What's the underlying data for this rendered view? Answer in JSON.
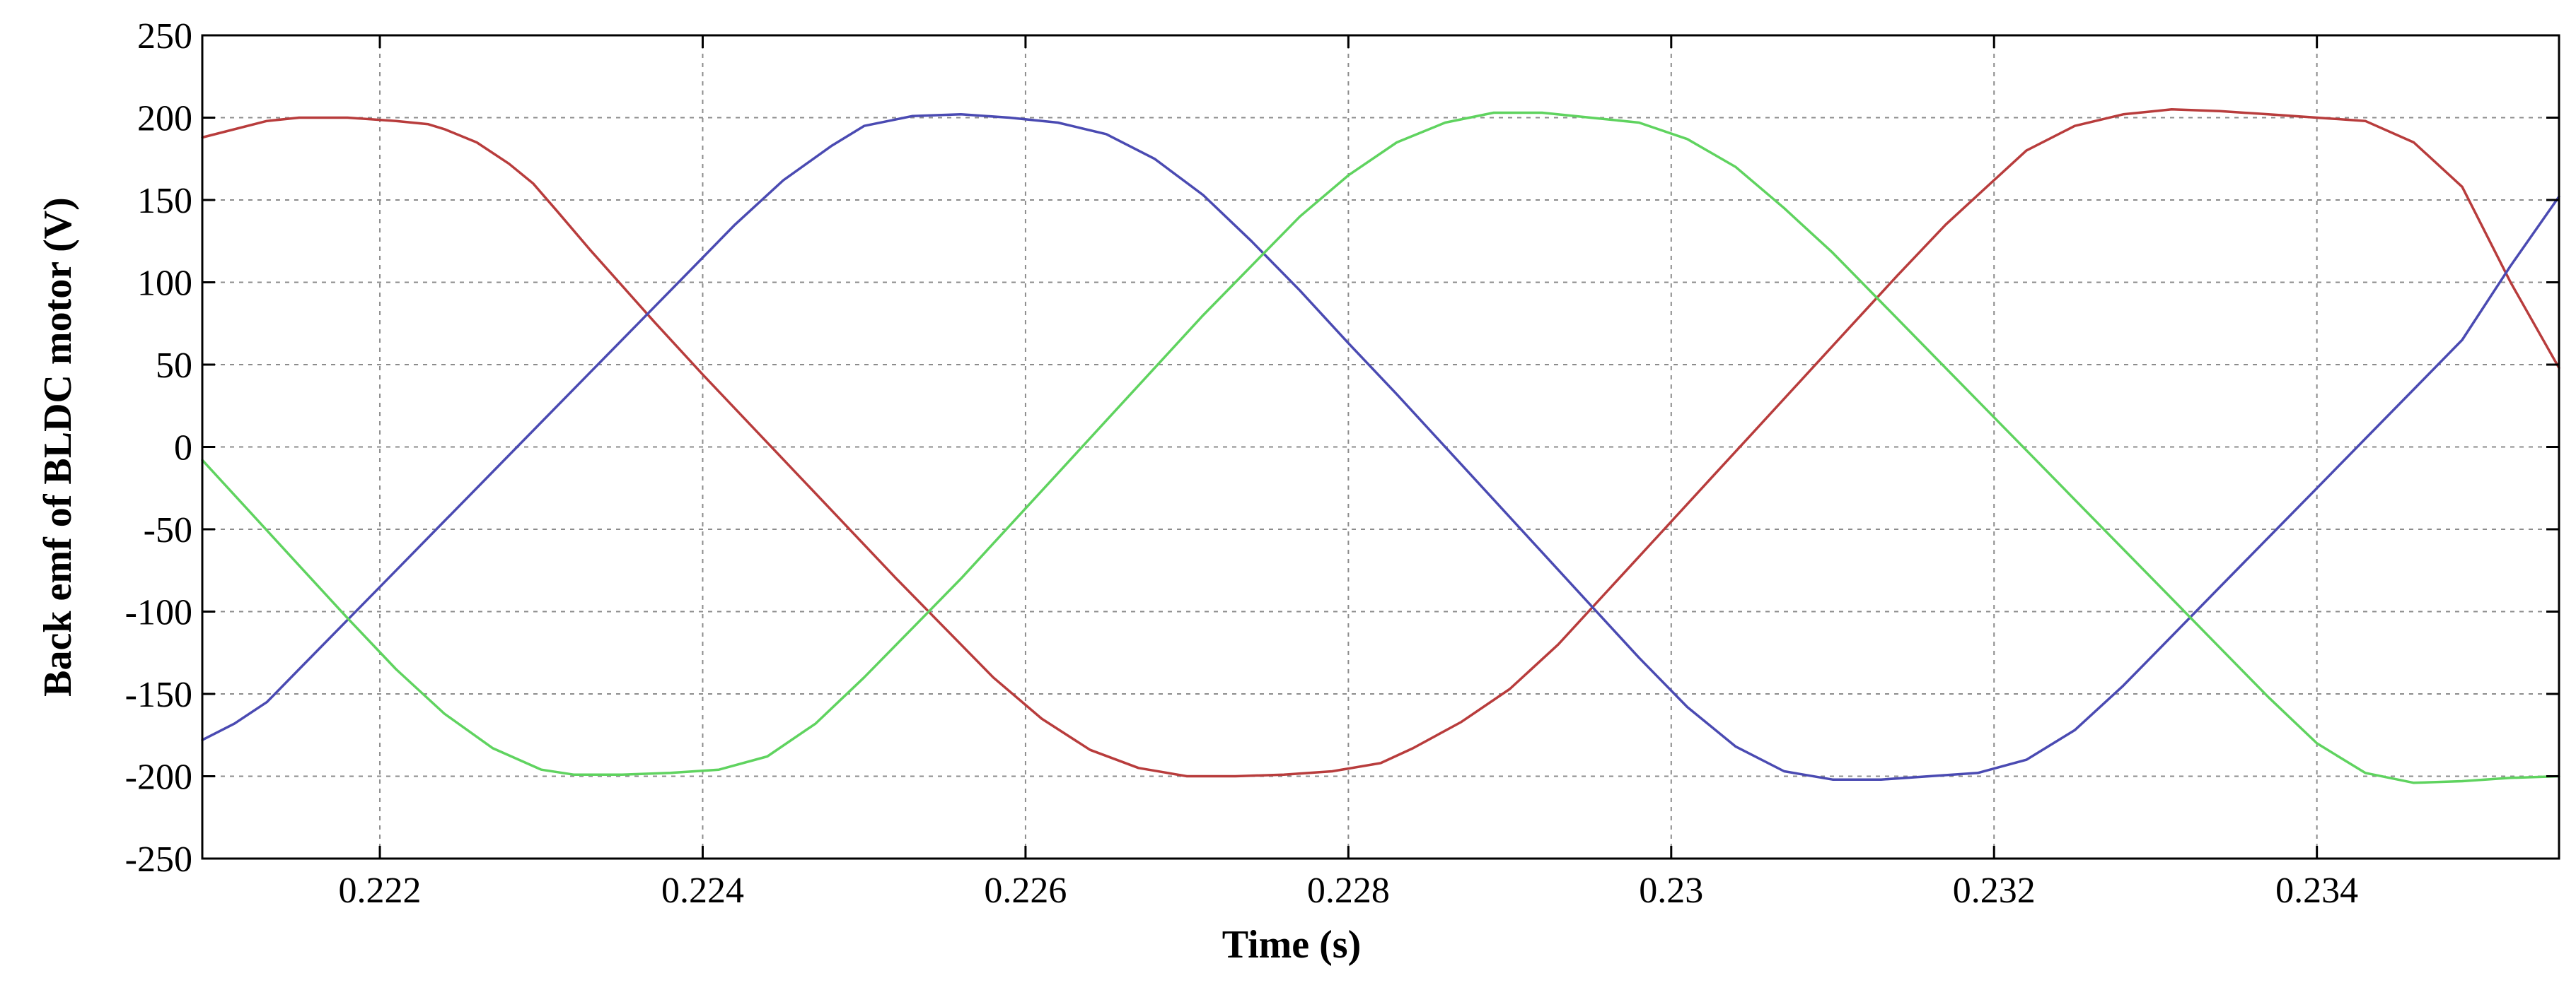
{
  "chart_data": {
    "type": "line",
    "title": "",
    "xlabel": "Time (s)",
    "ylabel": "Back emf of BLDC motor (V)",
    "xlim": [
      0.2209,
      0.2355
    ],
    "ylim": [
      -250,
      250
    ],
    "grid": true,
    "x_ticks": [
      0.222,
      0.224,
      0.226,
      0.228,
      0.23,
      0.232,
      0.234
    ],
    "x_tick_labels": [
      "0.222",
      "0.224",
      "0.226",
      "0.228",
      "0.23",
      "0.232",
      "0.234"
    ],
    "y_ticks": [
      -250,
      -200,
      -150,
      -100,
      -50,
      0,
      50,
      100,
      150,
      200,
      250
    ],
    "y_tick_labels": [
      "-250",
      "-200",
      "-150",
      "-100",
      "-50",
      "0",
      "50",
      "100",
      "150",
      "200",
      "250"
    ],
    "series": [
      {
        "color": "#b83c3c",
        "x": [
          0.2209,
          0.2213,
          0.2215,
          0.2218,
          0.2221,
          0.2222,
          0.2223,
          0.2224,
          0.2226,
          0.2228,
          0.22295,
          0.2231,
          0.2233,
          0.2235,
          0.2237,
          0.224,
          0.2243,
          0.2246,
          0.2249,
          0.2252,
          0.2255,
          0.2258,
          0.2261,
          0.2264,
          0.2267,
          0.227,
          0.2273,
          0.2276,
          0.2279,
          0.2282,
          0.2284,
          0.2287,
          0.229,
          0.2293,
          0.2296,
          0.2299,
          0.2302,
          0.2305,
          0.2308,
          0.2311,
          0.2314,
          0.2317,
          0.232,
          0.2322,
          0.2325,
          0.2328,
          0.2331,
          0.2334,
          0.2337,
          0.234,
          0.2343,
          0.2346,
          0.2349,
          0.2352,
          0.2355
        ],
        "y": [
          188,
          198,
          200,
          200,
          198,
          197,
          196,
          193,
          185,
          172,
          160,
          143,
          120,
          98,
          76,
          44,
          13,
          -18,
          -49,
          -80,
          -110,
          -140,
          -165,
          -184,
          -195,
          -200,
          -200,
          -199,
          -197,
          -192,
          -183,
          -167,
          -147,
          -120,
          -88,
          -56,
          -24,
          8,
          40,
          72,
          104,
          135,
          162,
          180,
          195,
          202,
          205,
          204,
          202,
          200,
          198,
          185,
          158,
          100,
          48
        ]
      },
      {
        "color": "#4a4ab2",
        "x": [
          0.2209,
          0.2211,
          0.2213,
          0.2215,
          0.2218,
          0.2221,
          0.2224,
          0.2227,
          0.223,
          0.2233,
          0.2236,
          0.2239,
          0.2242,
          0.2245,
          0.2248,
          0.225,
          0.2253,
          0.2256,
          0.2259,
          0.2262,
          0.2265,
          0.2268,
          0.2271,
          0.2274,
          0.2277,
          0.228,
          0.2283,
          0.2286,
          0.2289,
          0.2292,
          0.2295,
          0.2298,
          0.2301,
          0.2304,
          0.2307,
          0.231,
          0.2313,
          0.2316,
          0.2319,
          0.2322,
          0.2325,
          0.2328,
          0.2331,
          0.2334,
          0.2337,
          0.234,
          0.2343,
          0.2346,
          0.2349,
          0.2352,
          0.2355
        ],
        "y": [
          -178,
          -168,
          -155,
          -135,
          -105,
          -75,
          -45,
          -15,
          15,
          45,
          75,
          105,
          135,
          162,
          183,
          195,
          201,
          202,
          200,
          197,
          190,
          175,
          153,
          125,
          95,
          63,
          32,
          0,
          -32,
          -64,
          -96,
          -128,
          -158,
          -182,
          -197,
          -202,
          -202,
          -200,
          -198,
          -190,
          -172,
          -145,
          -115,
          -85,
          -55,
          -25,
          5,
          35,
          65,
          110,
          152
        ]
      },
      {
        "color": "#5fd35f",
        "x": [
          0.2209,
          0.2212,
          0.2215,
          0.2218,
          0.2221,
          0.2224,
          0.2227,
          0.223,
          0.2232,
          0.2235,
          0.2238,
          0.2241,
          0.2244,
          0.2247,
          0.225,
          0.2253,
          0.2256,
          0.2259,
          0.2262,
          0.2265,
          0.2268,
          0.2271,
          0.2274,
          0.2277,
          0.228,
          0.2283,
          0.2286,
          0.2289,
          0.2292,
          0.2295,
          0.2298,
          0.2301,
          0.2304,
          0.2307,
          0.231,
          0.2313,
          0.2316,
          0.2319,
          0.2322,
          0.2325,
          0.2328,
          0.2331,
          0.2334,
          0.2337,
          0.234,
          0.2343,
          0.2346,
          0.2349,
          0.2352,
          0.2355
        ],
        "y": [
          -8,
          -40,
          -72,
          -104,
          -135,
          -162,
          -183,
          -196,
          -199,
          -199,
          -198,
          -196,
          -188,
          -168,
          -140,
          -110,
          -80,
          -48,
          -16,
          16,
          48,
          80,
          110,
          140,
          165,
          185,
          197,
          203,
          203,
          200,
          197,
          187,
          170,
          145,
          118,
          88,
          58,
          28,
          -2,
          -32,
          -62,
          -92,
          -122,
          -152,
          -180,
          -198,
          -204,
          -203,
          -201,
          -200
        ]
      }
    ]
  }
}
